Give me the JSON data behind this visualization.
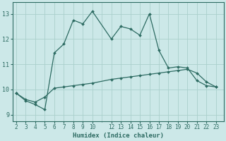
{
  "xlabel": "Humidex (Indice chaleur)",
  "bg_color": "#cce8e8",
  "line_color": "#2d6b62",
  "grid_color": "#aad0cc",
  "xtick_labels": [
    "2",
    "3",
    "4",
    "5",
    "6",
    "7",
    "8",
    "9",
    "10",
    "12",
    "13",
    "14",
    "15",
    "16",
    "17",
    "18",
    "19",
    "20",
    "21",
    "22",
    "23"
  ],
  "xtick_pos": [
    2,
    3,
    4,
    5,
    6,
    7,
    8,
    9,
    10,
    12,
    13,
    14,
    15,
    16,
    17,
    18,
    19,
    20,
    21,
    22,
    23
  ],
  "yticks": [
    9,
    10,
    11,
    12,
    13
  ],
  "ylim": [
    8.75,
    13.45
  ],
  "xlim": [
    1.6,
    23.8
  ],
  "line1_x": [
    2,
    3,
    4,
    5,
    6,
    7,
    8,
    9,
    10,
    12,
    13,
    14,
    15,
    16,
    17,
    18,
    19,
    20,
    21,
    22,
    23
  ],
  "line1_y": [
    9.85,
    9.55,
    9.4,
    9.2,
    11.45,
    11.8,
    12.75,
    12.6,
    13.1,
    12.0,
    12.5,
    12.4,
    12.15,
    13.0,
    11.55,
    10.85,
    10.9,
    10.85,
    10.35,
    10.15,
    10.1
  ],
  "line2_x": [
    2,
    3,
    4,
    5,
    6,
    7,
    8,
    9,
    10,
    12,
    13,
    14,
    15,
    16,
    17,
    18,
    19,
    20,
    21,
    22,
    23
  ],
  "line2_y": [
    9.85,
    9.6,
    9.5,
    9.7,
    10.05,
    10.1,
    10.15,
    10.2,
    10.25,
    10.4,
    10.45,
    10.5,
    10.55,
    10.6,
    10.65,
    10.7,
    10.75,
    10.8,
    10.65,
    10.3,
    10.1
  ],
  "tick_fontsize": 5.5,
  "label_fontsize": 6.5,
  "marker_size": 2.0,
  "line_width": 0.9
}
